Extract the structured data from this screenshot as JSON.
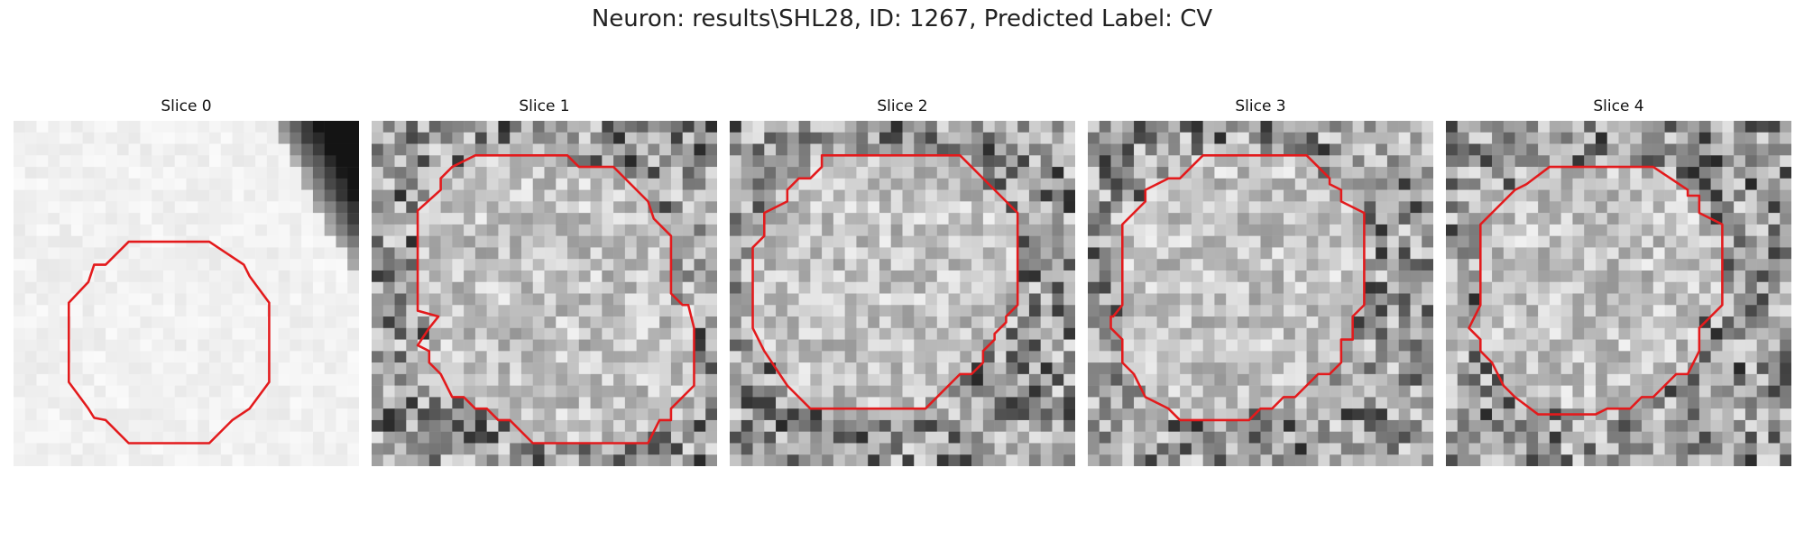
{
  "figure": {
    "title": "Neuron: results\\SHL28, ID: 1267, Predicted Label: CV",
    "contour_color": "#e31a1c",
    "slices": [
      {
        "title": "Slice 0",
        "tone": "light"
      },
      {
        "title": "Slice 1",
        "tone": "textured"
      },
      {
        "title": "Slice 2",
        "tone": "textured"
      },
      {
        "title": "Slice 3",
        "tone": "textured"
      },
      {
        "title": "Slice 4",
        "tone": "textured"
      }
    ]
  }
}
